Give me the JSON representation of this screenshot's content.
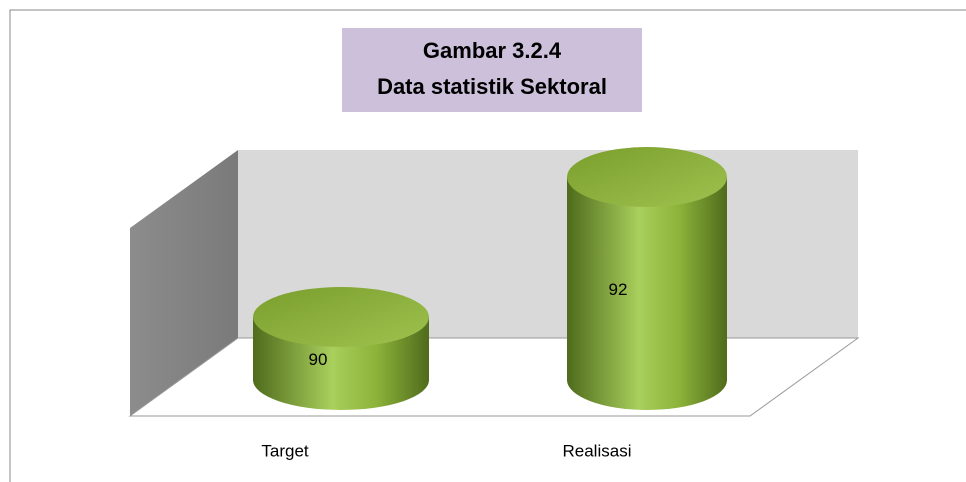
{
  "chart_data": {
    "type": "bar3d",
    "title": [
      "Gambar 3.2.4",
      "Data statistik Sektoral"
    ],
    "categories": [
      "Target",
      "Realisasi"
    ],
    "values": [
      90,
      92
    ],
    "color": "#8db33a",
    "ylim": [
      89.1,
      92.5
    ]
  }
}
